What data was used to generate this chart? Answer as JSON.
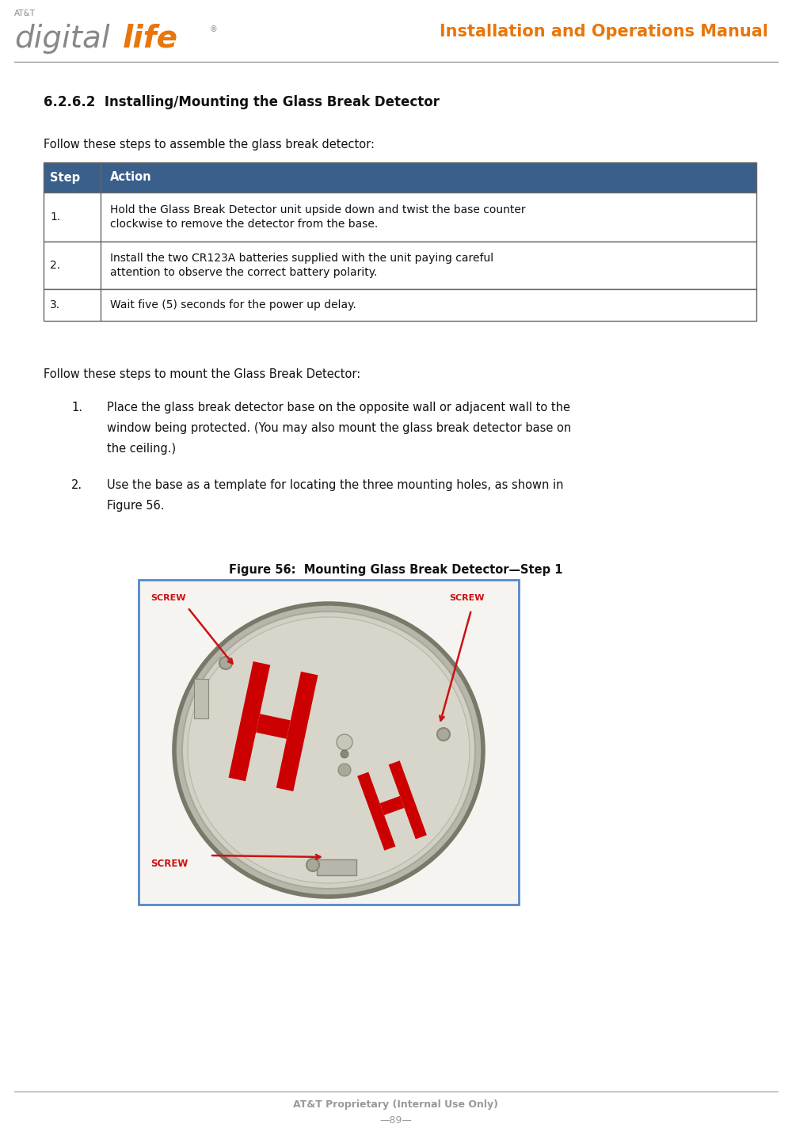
{
  "page_width": 10.0,
  "page_height": 14.43,
  "bg_color": "#ffffff",
  "header_title": "Installation and Operations Manual",
  "header_title_color": "#e8760a",
  "header_line_color": "#999999",
  "logo_att": "AT&T",
  "logo_digital": "digital",
  "logo_life": "life",
  "logo_gray": "#888888",
  "logo_orange": "#e8760a",
  "section_title": "6.2.6.2  Installing/Mounting the Glass Break Detector",
  "section_title_fontsize": 12,
  "section_title_color": "#111111",
  "para1": "Follow these steps to assemble the glass break detector:",
  "para1_fontsize": 10.5,
  "table_header_bg": "#3a5f8a",
  "table_header_text_color": "#ffffff",
  "table_col1_header": "Step",
  "table_col2_header": "Action",
  "table_border_color": "#666666",
  "table_fontsize": 10,
  "table_rows": [
    [
      "1.",
      "Hold the Glass Break Detector unit upside down and twist the base counter\nclockwise to remove the detector from the base."
    ],
    [
      "2.",
      "Install the two CR123A batteries supplied with the unit paying careful\nattention to observe the correct battery polarity."
    ],
    [
      "3.",
      "Wait five (5) seconds for the power up delay."
    ]
  ],
  "para2": "Follow these steps to mount the Glass Break Detector:",
  "para2_fontsize": 10.5,
  "bullet1_lines": [
    "Place the glass break detector base on the opposite wall or adjacent wall to the",
    "window being protected. (You may also mount the glass break detector base on",
    "the ceiling.)"
  ],
  "bullet2_lines": [
    "Use the base as a template for locating the three mounting holes, as shown in",
    "Figure 56."
  ],
  "bullet_fontsize": 10.5,
  "figure_caption": "Figure 56:  Mounting Glass Break Detector—Step 1",
  "figure_caption_fontsize": 10.5,
  "footer_text": "AT&T Proprietary (Internal Use Only)",
  "footer_page": "—89—",
  "footer_color": "#999999",
  "footer_line_color": "#999999",
  "footer_fontsize": 9,
  "img_border_color": "#5588cc",
  "device_body_color": "#c8c6bc",
  "device_inner_color": "#d4d2c8",
  "device_rim_color": "#9a9888",
  "screw_label_color": "#cc1111",
  "arrow_color": "#cc1111",
  "honeywell_color": "#cc0000"
}
